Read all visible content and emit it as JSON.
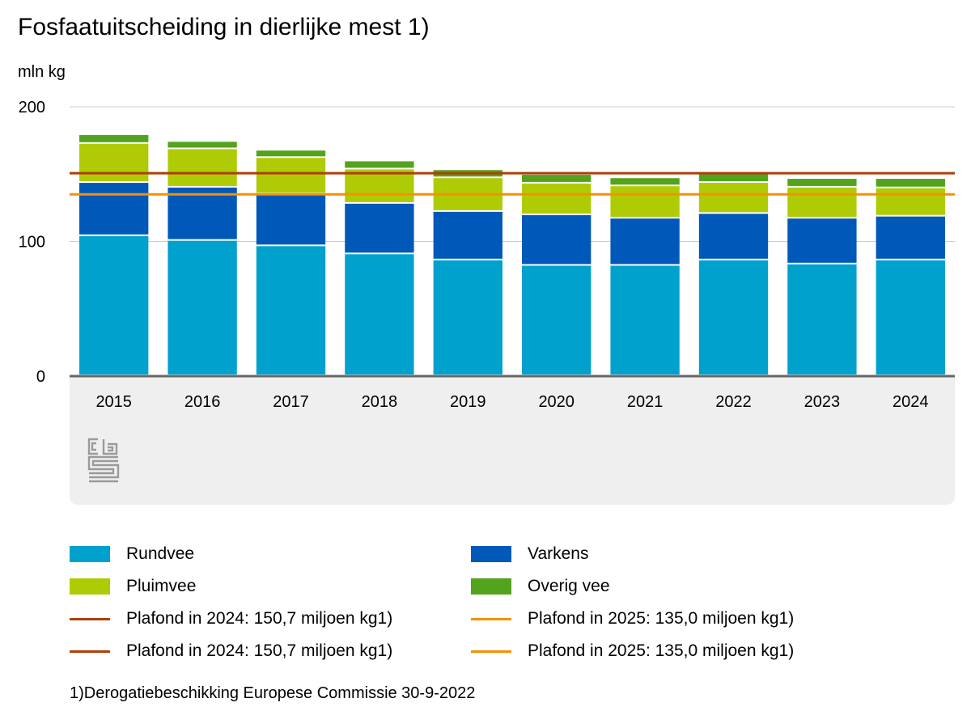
{
  "title": "Fosfaatuitscheiding in dierlijke mest 1)",
  "unit_label": "mln kg",
  "footnote": "1)Derogatiebeschikking Europese Commissie 30-9-2022",
  "chart_data": {
    "type": "bar",
    "stacked": true,
    "title": "Fosfaatuitscheiding in dierlijke mest 1)",
    "ylabel": "mln kg",
    "ylim": [
      0,
      200
    ],
    "yticks": [
      0,
      100,
      200
    ],
    "grid": true,
    "categories": [
      "2015",
      "2016",
      "2017",
      "2018",
      "2019",
      "2020",
      "2021",
      "2022",
      "2023",
      "2024"
    ],
    "series": [
      {
        "name": "Rundvee",
        "color": "#00a1cd",
        "values": [
          104,
          100.5,
          96.5,
          90.5,
          86,
          82,
          82,
          86,
          83,
          86
        ]
      },
      {
        "name": "Varkens",
        "color": "#0058b8",
        "values": [
          39.5,
          39.5,
          38.5,
          37.5,
          36,
          37.5,
          35,
          34.5,
          34,
          32.5
        ]
      },
      {
        "name": "Pluimvee",
        "color": "#afcb05",
        "values": [
          29,
          28.5,
          27,
          25.5,
          25,
          23.5,
          24,
          23,
          23,
          21
        ]
      },
      {
        "name": "Overig vee",
        "color": "#53a31d",
        "values": [
          6.5,
          5.5,
          5.5,
          6,
          6,
          6.5,
          6,
          6.5,
          6.5,
          7
        ]
      }
    ],
    "reference_lines": [
      {
        "name": "Plafond in 2024: 150,7 miljoen kg1)",
        "value": 150.7,
        "color": "#af3e06"
      },
      {
        "name": "Plafond in 2025: 135,0 miljoen kg1)",
        "value": 135.0,
        "color": "#f39200"
      }
    ],
    "legend": {
      "placement": "bottom",
      "entries": [
        {
          "label": "Rundvee",
          "kind": "box",
          "color": "#00a1cd"
        },
        {
          "label": "Varkens",
          "kind": "box",
          "color": "#0058b8"
        },
        {
          "label": "Pluimvee",
          "kind": "box",
          "color": "#afcb05"
        },
        {
          "label": "Overig vee",
          "kind": "box",
          "color": "#53a31d"
        },
        {
          "label": "Plafond in 2024: 150,7 miljoen kg1)",
          "kind": "line",
          "color": "#af3e06"
        },
        {
          "label": "Plafond in 2025: 135,0 miljoen kg1)",
          "kind": "line",
          "color": "#f39200"
        },
        {
          "label": "Plafond in 2024: 150,7 miljoen kg1)",
          "kind": "line",
          "color": "#af3e06"
        },
        {
          "label": "Plafond in 2025: 135,0 miljoen kg1)",
          "kind": "line",
          "color": "#f39200"
        }
      ]
    }
  },
  "logo": {
    "icon": "cbs-logo-icon"
  }
}
